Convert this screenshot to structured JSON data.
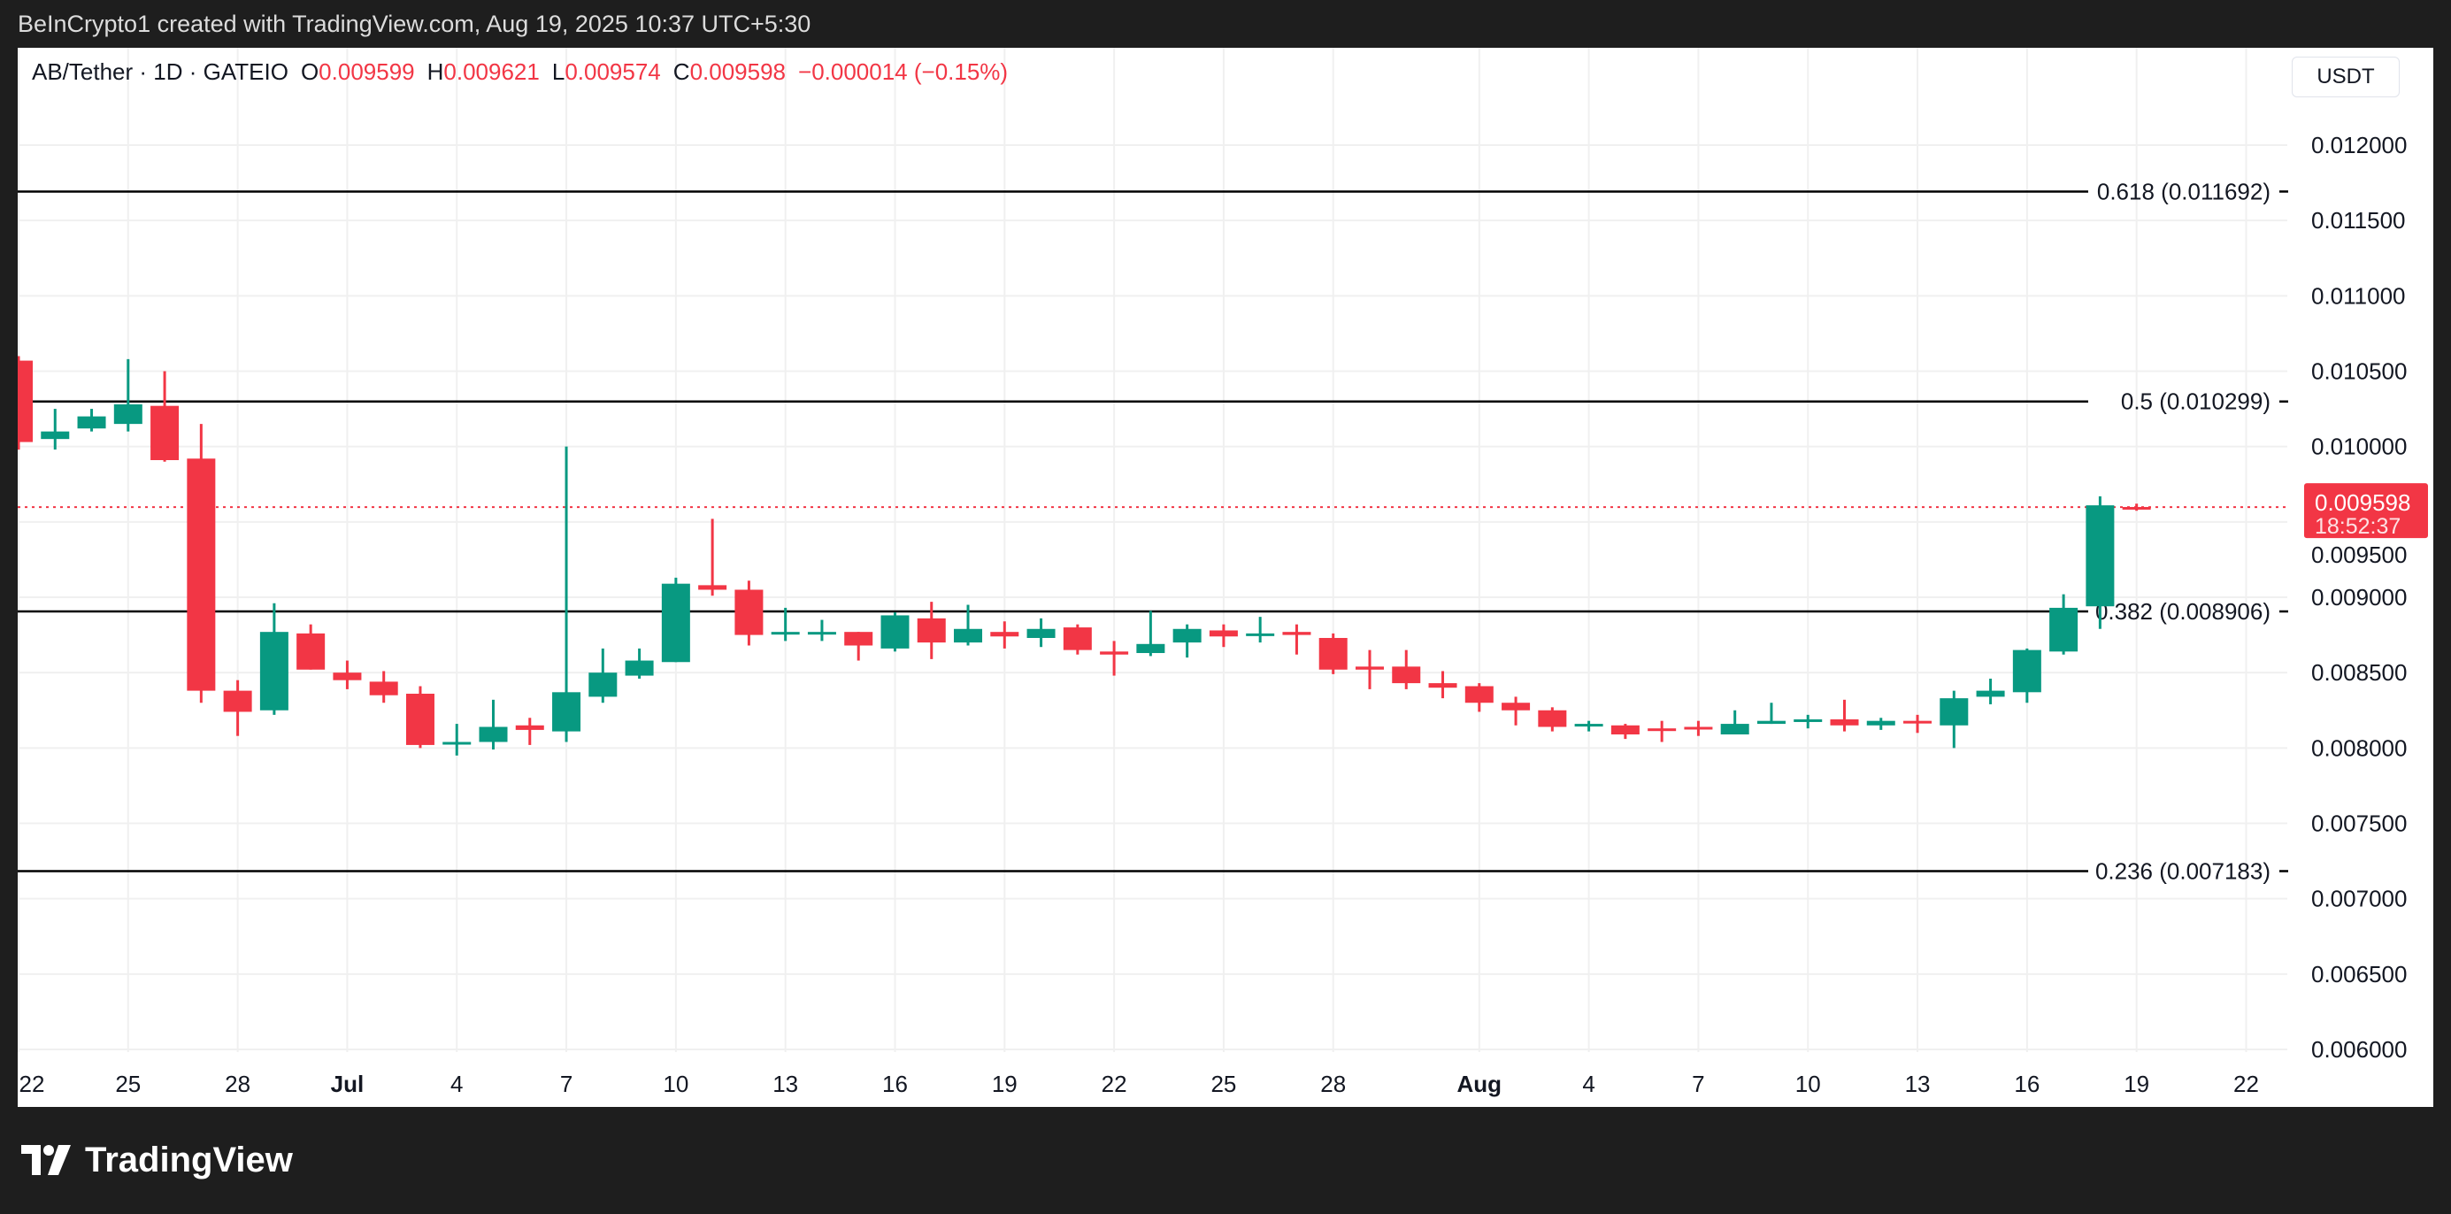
{
  "topbar": {
    "text": "BeInCrypto1 created with TradingView.com, Aug 19, 2025 10:37 UTC+5:30"
  },
  "legend": {
    "symbol": "AB/Tether · 1D · GATEIO",
    "o_label": "O",
    "o": "0.009599",
    "h_label": "H",
    "h": "0.009621",
    "l_label": "L",
    "l": "0.009574",
    "c_label": "C",
    "c": "0.009598",
    "change": "−0.000014 (−0.15%)"
  },
  "currency": "USDT",
  "last_price": {
    "value": "0.009598",
    "countdown": "18:52:37"
  },
  "footer": {
    "brand": "TradingView"
  },
  "colors": {
    "up": "#089981",
    "down": "#f23645",
    "fib": "#000000",
    "grid": "#f0f0f0"
  },
  "chart_data": {
    "type": "candlestick",
    "title": "AB/Tether · 1D · GATEIO",
    "start_date": "2025-06-22",
    "ylim": [
      0.00575,
      0.01225
    ],
    "yticks": [
      "0.006000",
      "0.006500",
      "0.007000",
      "0.007500",
      "0.008000",
      "0.008500",
      "0.009000",
      "0.009500",
      "0.010000",
      "0.010500",
      "0.011000",
      "0.011500",
      "0.012000"
    ],
    "xticks": [
      {
        "day": 0,
        "label": "22"
      },
      {
        "day": 3,
        "label": "25"
      },
      {
        "day": 6,
        "label": "28"
      },
      {
        "day": 9,
        "label": "Jul"
      },
      {
        "day": 12,
        "label": "4"
      },
      {
        "day": 15,
        "label": "7"
      },
      {
        "day": 18,
        "label": "10"
      },
      {
        "day": 21,
        "label": "13"
      },
      {
        "day": 24,
        "label": "16"
      },
      {
        "day": 27,
        "label": "19"
      },
      {
        "day": 30,
        "label": "22"
      },
      {
        "day": 33,
        "label": "25"
      },
      {
        "day": 36,
        "label": "28"
      },
      {
        "day": 40,
        "label": "Aug"
      },
      {
        "day": 43,
        "label": "4"
      },
      {
        "day": 46,
        "label": "7"
      },
      {
        "day": 49,
        "label": "10"
      },
      {
        "day": 52,
        "label": "13"
      },
      {
        "day": 55,
        "label": "16"
      },
      {
        "day": 58,
        "label": "19"
      },
      {
        "day": 61,
        "label": "22"
      }
    ],
    "ohlc": [
      [
        0.01057,
        0.0106,
        0.00998,
        0.01003
      ],
      [
        0.01005,
        0.01025,
        0.00998,
        0.0101
      ],
      [
        0.01012,
        0.01025,
        0.0101,
        0.0102
      ],
      [
        0.01015,
        0.01058,
        0.0101,
        0.01028
      ],
      [
        0.01027,
        0.0105,
        0.0099,
        0.00991
      ],
      [
        0.00992,
        0.01015,
        0.0083,
        0.00838
      ],
      [
        0.00838,
        0.00845,
        0.00808,
        0.00824
      ],
      [
        0.00825,
        0.00896,
        0.00822,
        0.00877
      ],
      [
        0.00876,
        0.00882,
        0.00852,
        0.00852
      ],
      [
        0.0085,
        0.00858,
        0.00839,
        0.00845
      ],
      [
        0.00844,
        0.00851,
        0.0083,
        0.00835
      ],
      [
        0.00836,
        0.00841,
        0.008,
        0.00802
      ],
      [
        0.00803,
        0.00816,
        0.00795,
        0.00804
      ],
      [
        0.00804,
        0.00832,
        0.00799,
        0.00814
      ],
      [
        0.00815,
        0.0082,
        0.00802,
        0.00812
      ],
      [
        0.00811,
        0.01,
        0.00804,
        0.00837
      ],
      [
        0.00834,
        0.00866,
        0.0083,
        0.0085
      ],
      [
        0.00848,
        0.00866,
        0.00846,
        0.00858
      ],
      [
        0.00857,
        0.00913,
        0.00857,
        0.00909
      ],
      [
        0.00908,
        0.00952,
        0.00901,
        0.00905
      ],
      [
        0.00905,
        0.00911,
        0.00868,
        0.00875
      ],
      [
        0.00876,
        0.00893,
        0.00871,
        0.00877
      ],
      [
        0.00876,
        0.00885,
        0.00871,
        0.00877
      ],
      [
        0.00877,
        0.00877,
        0.00858,
        0.00868
      ],
      [
        0.00866,
        0.0089,
        0.00864,
        0.00888
      ],
      [
        0.00886,
        0.00897,
        0.00859,
        0.0087
      ],
      [
        0.0087,
        0.00895,
        0.00868,
        0.00879
      ],
      [
        0.00877,
        0.00884,
        0.00866,
        0.00874
      ],
      [
        0.00873,
        0.00886,
        0.00867,
        0.00879
      ],
      [
        0.0088,
        0.00882,
        0.00862,
        0.00865
      ],
      [
        0.00864,
        0.00871,
        0.00848,
        0.00862
      ],
      [
        0.00863,
        0.00891,
        0.00861,
        0.00869
      ],
      [
        0.0087,
        0.00882,
        0.0086,
        0.00879
      ],
      [
        0.00878,
        0.00882,
        0.00867,
        0.00874
      ],
      [
        0.00875,
        0.00887,
        0.0087,
        0.00876
      ],
      [
        0.00877,
        0.00882,
        0.00862,
        0.00875
      ],
      [
        0.00873,
        0.00876,
        0.00849,
        0.00852
      ],
      [
        0.00854,
        0.00865,
        0.00839,
        0.00852
      ],
      [
        0.00854,
        0.00865,
        0.00839,
        0.00843
      ],
      [
        0.00843,
        0.00851,
        0.00833,
        0.0084
      ],
      [
        0.00841,
        0.00843,
        0.00824,
        0.0083
      ],
      [
        0.0083,
        0.00834,
        0.00815,
        0.00825
      ],
      [
        0.00825,
        0.00827,
        0.00811,
        0.00814
      ],
      [
        0.00815,
        0.00818,
        0.00811,
        0.00816
      ],
      [
        0.00815,
        0.00816,
        0.00806,
        0.00809
      ],
      [
        0.00813,
        0.00818,
        0.00804,
        0.00812
      ],
      [
        0.00814,
        0.00818,
        0.00808,
        0.00813
      ],
      [
        0.00809,
        0.00825,
        0.00809,
        0.00816
      ],
      [
        0.00816,
        0.0083,
        0.00816,
        0.00818
      ],
      [
        0.00818,
        0.00822,
        0.00813,
        0.00819
      ],
      [
        0.00819,
        0.00832,
        0.00811,
        0.00815
      ],
      [
        0.00815,
        0.0082,
        0.00812,
        0.00818
      ],
      [
        0.00818,
        0.00822,
        0.0081,
        0.00817
      ],
      [
        0.00815,
        0.00838,
        0.008,
        0.00833
      ],
      [
        0.00834,
        0.00846,
        0.00829,
        0.00838
      ],
      [
        0.00837,
        0.00866,
        0.0083,
        0.00865
      ],
      [
        0.00864,
        0.00902,
        0.00862,
        0.00893
      ],
      [
        0.00894,
        0.00967,
        0.00879,
        0.00961
      ],
      [
        0.009599,
        0.009621,
        0.009574,
        0.009598
      ]
    ],
    "fib_levels": [
      {
        "ratio": "0.618",
        "price": 0.011692,
        "label": "0.618 (0.011692)"
      },
      {
        "ratio": "0.5",
        "price": 0.010299,
        "label": "0.5 (0.010299)"
      },
      {
        "ratio": "0.382",
        "price": 0.008906,
        "label": "0.382 (0.008906)"
      },
      {
        "ratio": "0.236",
        "price": 0.007183,
        "label": "0.236 (0.007183)"
      }
    ],
    "last_price": 0.009598
  }
}
